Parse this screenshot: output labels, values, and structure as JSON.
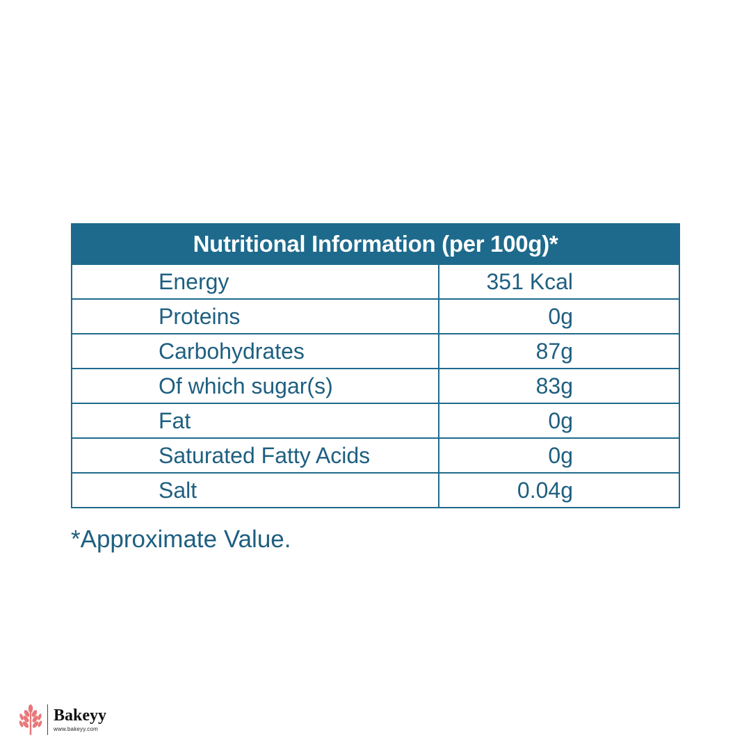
{
  "table": {
    "title": "Nutritional Information (per 100g)*",
    "rows": [
      {
        "label": "Energy",
        "value": "351 Kcal"
      },
      {
        "label": "Proteins",
        "value": "0g"
      },
      {
        "label": "Carbohydrates",
        "value": "87g"
      },
      {
        "label": "Of which sugar(s)",
        "value": "83g"
      },
      {
        "label": "Fat",
        "value": "0g"
      },
      {
        "label": "Saturated Fatty Acids",
        "value": "0g"
      },
      {
        "label": "Salt",
        "value": "0.04g"
      }
    ]
  },
  "footnote": "*Approximate Value.",
  "brand": {
    "name": "Bakeyy",
    "url": "www.bakeyy.com",
    "icon": "wheat-icon"
  },
  "colors": {
    "header_bg": "#1e6a8c",
    "text": "#1e5f80",
    "brand_icon": "#e8787a"
  }
}
